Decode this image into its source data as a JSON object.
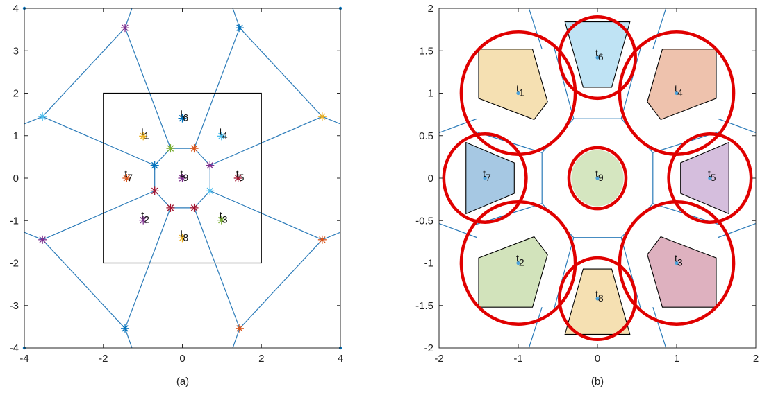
{
  "chart_data": [
    {
      "type": "scatter",
      "caption": "(a)",
      "xlim": [
        -4,
        4
      ],
      "ylim": [
        -4,
        4
      ],
      "xticks": [
        -4,
        -2,
        0,
        2,
        4
      ],
      "yticks": [
        -4,
        -3,
        -2,
        -1,
        0,
        1,
        2,
        3,
        4
      ],
      "boundary_box": [
        [
          -2,
          -2
        ],
        [
          2,
          2
        ]
      ],
      "corner_points": [
        [
          -4,
          4
        ],
        [
          4,
          4
        ],
        [
          -4,
          -4
        ],
        [
          4,
          -4
        ]
      ],
      "targets": [
        {
          "label": "t",
          "index": "1",
          "x": -0.99,
          "y": 0.99,
          "color": "#EDB120"
        },
        {
          "label": "t",
          "index": "2",
          "x": -0.99,
          "y": -0.99,
          "color": "#7E2F8E"
        },
        {
          "label": "t",
          "index": "3",
          "x": 0.99,
          "y": -0.99,
          "color": "#77AC30"
        },
        {
          "label": "t",
          "index": "4",
          "x": 0.99,
          "y": 0.99,
          "color": "#4DBEEE"
        },
        {
          "label": "t",
          "index": "5",
          "x": 1.41,
          "y": 0,
          "color": "#A2142F"
        },
        {
          "label": "t",
          "index": "6",
          "x": 0,
          "y": 1.41,
          "color": "#0072BD"
        },
        {
          "label": "t",
          "index": "7",
          "x": -1.41,
          "y": 0,
          "color": "#D95319"
        },
        {
          "label": "t",
          "index": "8",
          "x": 0,
          "y": -1.41,
          "color": "#EDB120"
        },
        {
          "label": "t",
          "index": "9",
          "x": 0,
          "y": 0,
          "color": "#7E2F8E"
        }
      ],
      "vertices": [
        {
          "x": -0.3,
          "y": 0.7,
          "color": "#77AC30"
        },
        {
          "x": 0.3,
          "y": 0.7,
          "color": "#D95319"
        },
        {
          "x": 0.7,
          "y": 0.3,
          "color": "#7E2F8E"
        },
        {
          "x": 0.7,
          "y": -0.3,
          "color": "#4DBEEE"
        },
        {
          "x": 0.3,
          "y": -0.7,
          "color": "#A2142F"
        },
        {
          "x": -0.3,
          "y": -0.7,
          "color": "#A2142F"
        },
        {
          "x": -0.7,
          "y": -0.3,
          "color": "#A2142F"
        },
        {
          "x": -0.7,
          "y": 0.3,
          "color": "#0072BD"
        },
        {
          "x": -1.45,
          "y": 3.54,
          "color": "#7E2F8E"
        },
        {
          "x": 1.45,
          "y": 3.54,
          "color": "#0072BD"
        },
        {
          "x": 3.54,
          "y": 1.45,
          "color": "#EDB120"
        },
        {
          "x": 3.54,
          "y": -1.45,
          "color": "#D95319"
        },
        {
          "x": 1.45,
          "y": -3.54,
          "color": "#D95319"
        },
        {
          "x": -1.45,
          "y": -3.54,
          "color": "#0072BD"
        },
        {
          "x": -3.54,
          "y": -1.45,
          "color": "#7E2F8E"
        },
        {
          "x": -3.54,
          "y": 1.45,
          "color": "#4DBEEE"
        }
      ],
      "edges": [
        [
          [
            -0.3,
            0.7
          ],
          [
            0.3,
            0.7
          ]
        ],
        [
          [
            0.3,
            0.7
          ],
          [
            0.7,
            0.3
          ]
        ],
        [
          [
            0.7,
            0.3
          ],
          [
            0.7,
            -0.3
          ]
        ],
        [
          [
            0.7,
            -0.3
          ],
          [
            0.3,
            -0.7
          ]
        ],
        [
          [
            0.3,
            -0.7
          ],
          [
            -0.3,
            -0.7
          ]
        ],
        [
          [
            -0.3,
            -0.7
          ],
          [
            -0.7,
            -0.3
          ]
        ],
        [
          [
            -0.7,
            -0.3
          ],
          [
            -0.7,
            0.3
          ]
        ],
        [
          [
            -0.7,
            0.3
          ],
          [
            -0.3,
            0.7
          ]
        ],
        [
          [
            -0.3,
            0.7
          ],
          [
            -1.45,
            3.54
          ]
        ],
        [
          [
            0.3,
            0.7
          ],
          [
            1.45,
            3.54
          ]
        ],
        [
          [
            0.7,
            0.3
          ],
          [
            3.54,
            1.45
          ]
        ],
        [
          [
            0.7,
            -0.3
          ],
          [
            3.54,
            -1.45
          ]
        ],
        [
          [
            0.3,
            -0.7
          ],
          [
            1.45,
            -3.54
          ]
        ],
        [
          [
            -0.3,
            -0.7
          ],
          [
            -1.45,
            -3.54
          ]
        ],
        [
          [
            -0.7,
            -0.3
          ],
          [
            -3.54,
            -1.45
          ]
        ],
        [
          [
            -0.7,
            0.3
          ],
          [
            -3.54,
            1.45
          ]
        ],
        [
          [
            -1.45,
            3.54
          ],
          [
            -3.54,
            1.45
          ]
        ],
        [
          [
            1.45,
            3.54
          ],
          [
            3.54,
            1.45
          ]
        ],
        [
          [
            3.54,
            -1.45
          ],
          [
            1.45,
            -3.54
          ]
        ],
        [
          [
            -1.45,
            -3.54
          ],
          [
            -3.54,
            -1.45
          ]
        ],
        [
          [
            -1.45,
            3.54
          ],
          [
            -1.2,
            4.2
          ]
        ],
        [
          [
            1.45,
            3.54
          ],
          [
            1.2,
            4.2
          ]
        ],
        [
          [
            3.54,
            1.45
          ],
          [
            4.2,
            1.2
          ]
        ],
        [
          [
            3.54,
            -1.45
          ],
          [
            4.2,
            -1.2
          ]
        ],
        [
          [
            1.45,
            -3.54
          ],
          [
            1.2,
            -4.2
          ]
        ],
        [
          [
            -1.45,
            -3.54
          ],
          [
            -1.2,
            -4.2
          ]
        ],
        [
          [
            -3.54,
            -1.45
          ],
          [
            -4.2,
            -1.2
          ]
        ],
        [
          [
            -3.54,
            1.45
          ],
          [
            -4.2,
            1.2
          ]
        ]
      ]
    },
    {
      "type": "scatter",
      "caption": "(b)",
      "xlim": [
        -2,
        2
      ],
      "ylim": [
        -2,
        2
      ],
      "xticks": [
        -2,
        -1,
        0,
        1,
        2
      ],
      "yticks": [
        -2,
        -1.5,
        -1,
        -0.5,
        0,
        0.5,
        1,
        1.5,
        2
      ],
      "regions": [
        {
          "index": "1",
          "center": [
            -1,
            1
          ],
          "fill": "#F5E0B2",
          "radius": 0.72,
          "polygon": [
            [
              -1.5,
              1.52
            ],
            [
              -0.82,
              1.52
            ],
            [
              -0.63,
              0.9
            ],
            [
              -0.8,
              0.69
            ],
            [
              -1.5,
              0.94
            ]
          ]
        },
        {
          "index": "6",
          "center": [
            0,
            1.42
          ],
          "fill": "#BFE3F4",
          "radius": 0.48,
          "polygon": [
            [
              -0.41,
              1.84
            ],
            [
              0.41,
              1.84
            ],
            [
              0.18,
              1.07
            ],
            [
              -0.18,
              1.07
            ]
          ]
        },
        {
          "index": "4",
          "center": [
            1,
            1
          ],
          "fill": "#EEC2AD",
          "radius": 0.72,
          "polygon": [
            [
              0.82,
              1.52
            ],
            [
              1.5,
              1.52
            ],
            [
              1.5,
              0.94
            ],
            [
              0.8,
              0.69
            ],
            [
              0.63,
              0.9
            ]
          ]
        },
        {
          "index": "7",
          "center": [
            -1.42,
            0
          ],
          "fill": "#A6C8E3",
          "radius": 0.52,
          "polygon": [
            [
              -1.66,
              0.42
            ],
            [
              -1.66,
              -0.42
            ],
            [
              -1.05,
              -0.18
            ],
            [
              -1.05,
              0.18
            ]
          ]
        },
        {
          "index": "9",
          "center": [
            0,
            0
          ],
          "fill": "#D5E6C0",
          "radius": 0.36,
          "circle": true
        },
        {
          "index": "5",
          "center": [
            1.42,
            0
          ],
          "fill": "#D5BEDD",
          "radius": 0.52,
          "polygon": [
            [
              1.66,
              0.42
            ],
            [
              1.66,
              -0.42
            ],
            [
              1.05,
              -0.18
            ],
            [
              1.05,
              0.18
            ]
          ]
        },
        {
          "index": "2",
          "center": [
            -1,
            -1
          ],
          "fill": "#D2E3BB",
          "radius": 0.72,
          "polygon": [
            [
              -1.5,
              -1.52
            ],
            [
              -0.82,
              -1.52
            ],
            [
              -0.63,
              -0.9
            ],
            [
              -0.8,
              -0.69
            ],
            [
              -1.5,
              -0.94
            ]
          ]
        },
        {
          "index": "8",
          "center": [
            0,
            -1.42
          ],
          "fill": "#F5E0B2",
          "radius": 0.48,
          "polygon": [
            [
              -0.41,
              -1.84
            ],
            [
              0.41,
              -1.84
            ],
            [
              0.18,
              -1.07
            ],
            [
              -0.18,
              -1.07
            ]
          ]
        },
        {
          "index": "3",
          "center": [
            1,
            -1
          ],
          "fill": "#DEB1BF",
          "radius": 0.72,
          "polygon": [
            [
              0.82,
              -1.52
            ],
            [
              1.5,
              -1.52
            ],
            [
              1.5,
              -0.94
            ],
            [
              0.8,
              -0.69
            ],
            [
              0.63,
              -0.9
            ]
          ]
        }
      ],
      "voronoi_edges": [
        [
          [
            -0.7,
            1.52
          ],
          [
            -0.9,
            2.1
          ]
        ],
        [
          [
            0.7,
            1.52
          ],
          [
            0.9,
            2.1
          ]
        ],
        [
          [
            -0.7,
            -1.52
          ],
          [
            -0.9,
            -2.1
          ]
        ],
        [
          [
            0.7,
            -1.52
          ],
          [
            0.9,
            -2.1
          ]
        ],
        [
          [
            -1.52,
            0.7
          ],
          [
            -2.1,
            0.5
          ]
        ],
        [
          [
            -1.52,
            -0.7
          ],
          [
            -2.1,
            -0.5
          ]
        ],
        [
          [
            1.52,
            0.7
          ],
          [
            2.1,
            0.5
          ]
        ],
        [
          [
            1.52,
            -0.7
          ],
          [
            2.1,
            -0.5
          ]
        ],
        [
          [
            -0.3,
            0.7
          ],
          [
            -0.7,
            0.3
          ]
        ],
        [
          [
            0.3,
            0.7
          ],
          [
            0.7,
            0.3
          ]
        ],
        [
          [
            0.7,
            -0.3
          ],
          [
            0.3,
            -0.7
          ]
        ],
        [
          [
            -0.3,
            -0.7
          ],
          [
            -0.7,
            -0.3
          ]
        ],
        [
          [
            -0.3,
            0.7
          ],
          [
            0.3,
            0.7
          ]
        ],
        [
          [
            -0.3,
            -0.7
          ],
          [
            0.3,
            -0.7
          ]
        ],
        [
          [
            -0.7,
            0.3
          ],
          [
            -0.7,
            -0.3
          ]
        ],
        [
          [
            0.7,
            0.3
          ],
          [
            0.7,
            -0.3
          ]
        ],
        [
          [
            -0.3,
            0.7
          ],
          [
            -0.55,
            1.55
          ]
        ],
        [
          [
            0.3,
            0.7
          ],
          [
            0.55,
            1.55
          ]
        ],
        [
          [
            -0.3,
            -0.7
          ],
          [
            -0.55,
            -1.55
          ]
        ],
        [
          [
            0.3,
            -0.7
          ],
          [
            0.55,
            -1.55
          ]
        ],
        [
          [
            -0.7,
            0.3
          ],
          [
            -1.55,
            0.55
          ]
        ],
        [
          [
            -0.7,
            -0.3
          ],
          [
            -1.55,
            -0.55
          ]
        ],
        [
          [
            0.7,
            0.3
          ],
          [
            1.55,
            0.55
          ]
        ],
        [
          [
            0.7,
            -0.3
          ],
          [
            1.55,
            -0.55
          ]
        ]
      ],
      "target_point_color": "#4DA3DB",
      "circle_color": "#E00000"
    }
  ]
}
